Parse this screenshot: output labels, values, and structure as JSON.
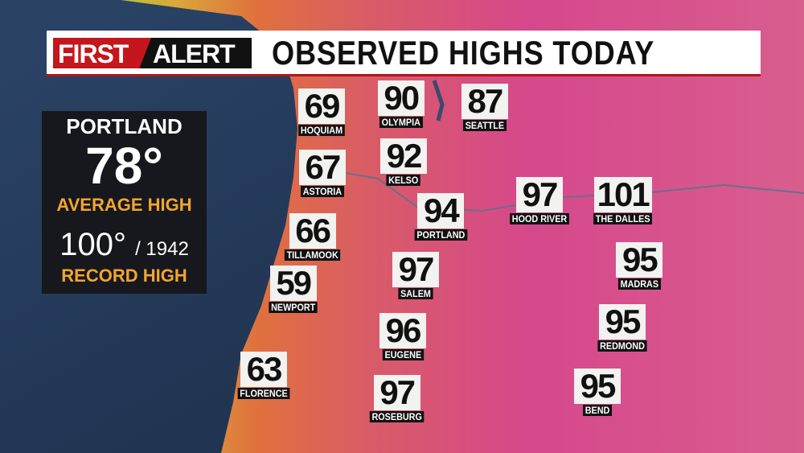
{
  "header": {
    "logo_first": "FIRST",
    "logo_alert": "ALERT",
    "title": "OBSERVED HIGHS TODAY"
  },
  "panel": {
    "city": "PORTLAND",
    "average_high": "78°",
    "average_label": "AVERAGE HIGH",
    "record_high": "100°",
    "record_year": "/ 1942",
    "record_label": "RECORD HIGH"
  },
  "stations": [
    {
      "name": "HOQUIAM",
      "temp": "69"
    },
    {
      "name": "OLYMPIA",
      "temp": "90"
    },
    {
      "name": "SEATTLE",
      "temp": "87"
    },
    {
      "name": "ASTORIA",
      "temp": "67"
    },
    {
      "name": "KELSO",
      "temp": "92"
    },
    {
      "name": "PORTLAND",
      "temp": "94"
    },
    {
      "name": "HOOD RIVER",
      "temp": "97"
    },
    {
      "name": "THE DALLES",
      "temp": "101"
    },
    {
      "name": "TILLAMOOK",
      "temp": "66"
    },
    {
      "name": "MADRAS",
      "temp": "95"
    },
    {
      "name": "SALEM",
      "temp": "97"
    },
    {
      "name": "NEWPORT",
      "temp": "59"
    },
    {
      "name": "REDMOND",
      "temp": "95"
    },
    {
      "name": "EUGENE",
      "temp": "96"
    },
    {
      "name": "FLORENCE",
      "temp": "63"
    },
    {
      "name": "ROSEBURG",
      "temp": "97"
    },
    {
      "name": "BEND",
      "temp": "95"
    }
  ],
  "colors": {
    "ocean": "#1f3350",
    "coast": "#c9c23a",
    "land_warm": "#e0603a",
    "land_hot": "#d2468a",
    "accent_red": "#c4161c",
    "accent_orange": "#f2a531"
  }
}
